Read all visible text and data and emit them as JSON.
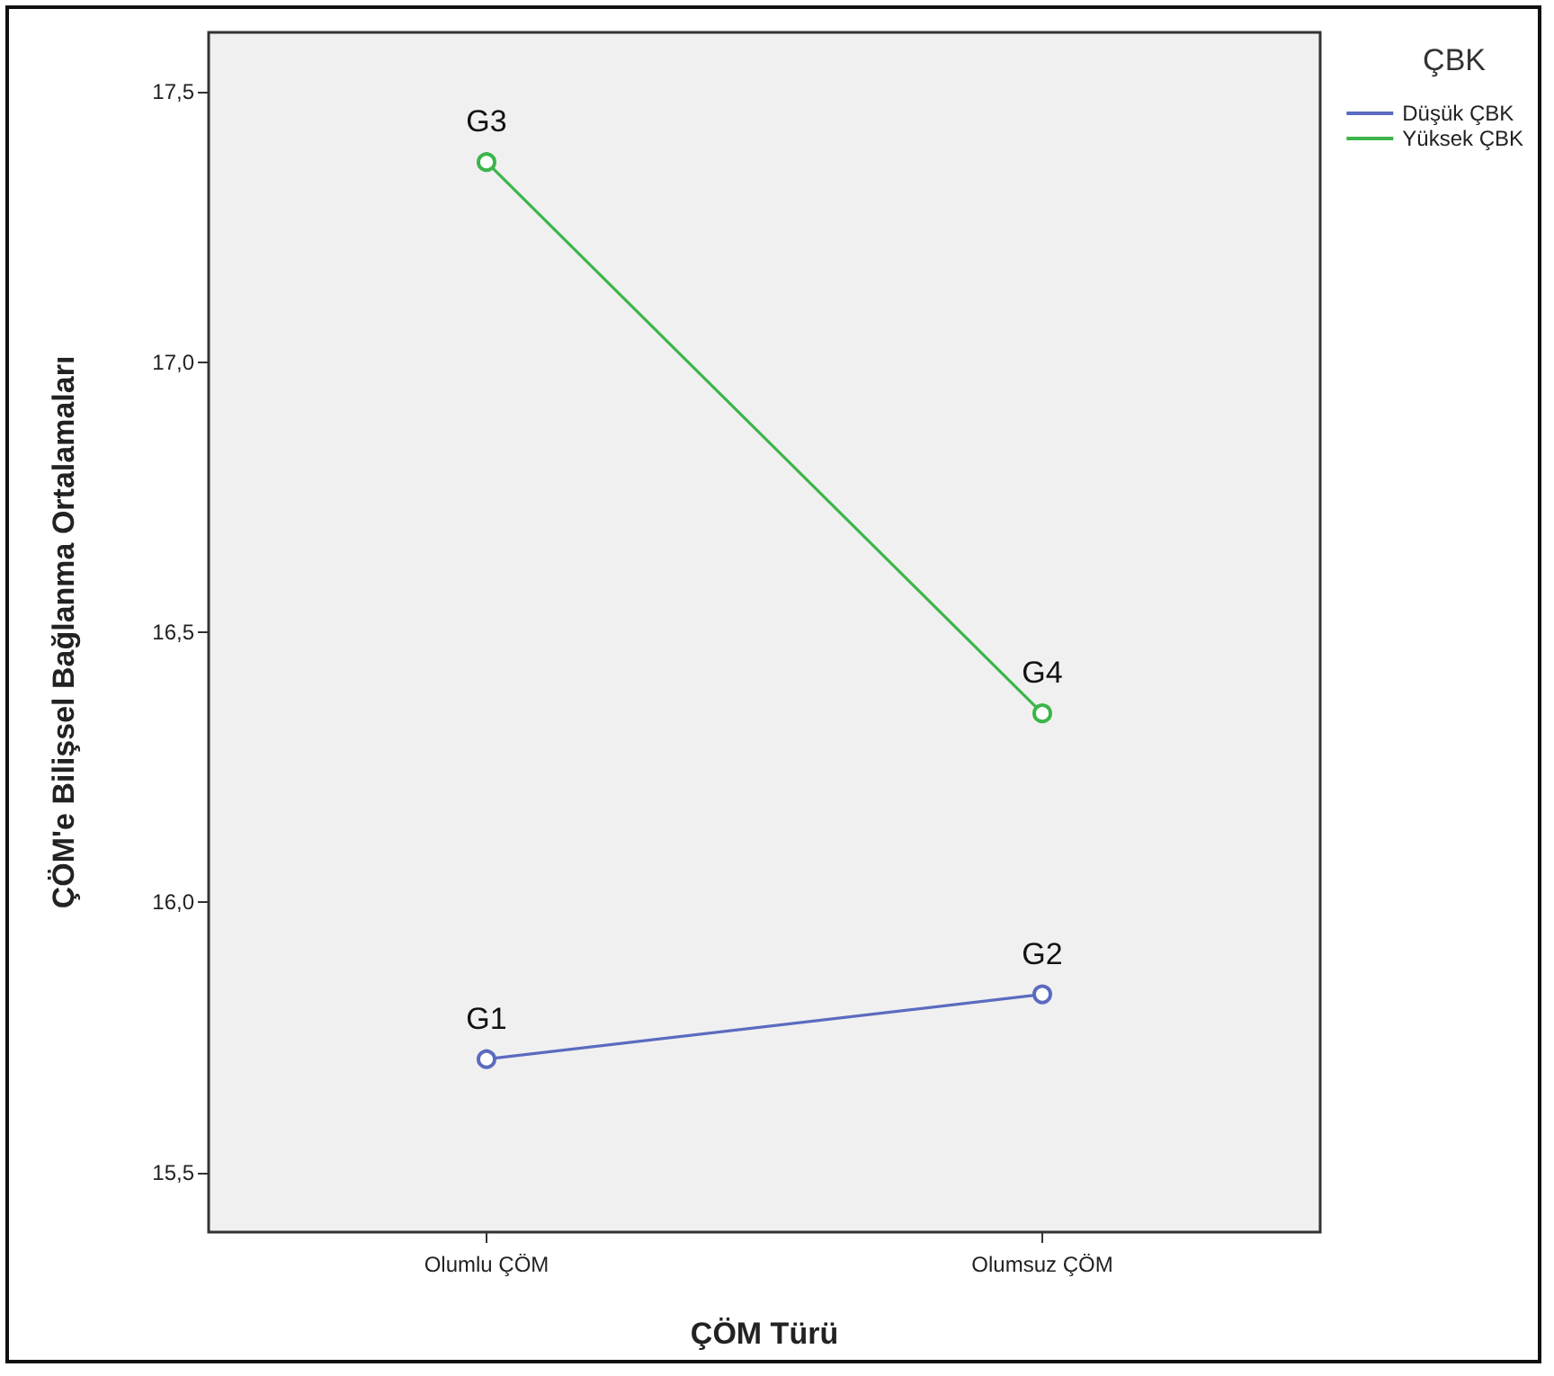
{
  "chart_data": {
    "type": "line",
    "xlabel": "ÇÖM Türü",
    "ylabel": "ÇÖM'e Bilişsel Bağlanma Ortalamaları",
    "legend_title": "ÇBK",
    "legend": "right",
    "marker": "circle",
    "grid": false,
    "categories": [
      "Olumlu ÇÖM",
      "Olumsuz ÇÖM"
    ],
    "series": [
      {
        "name": "Düşük ÇBK",
        "color": "#5b6bbf",
        "values": [
          15.71,
          15.83
        ]
      },
      {
        "name": "Yüksek ÇBK",
        "color": "#3cb54a",
        "values": [
          17.37,
          16.35
        ]
      }
    ],
    "ylim": [
      15.39,
      17.61
    ],
    "yticks": [
      {
        "value": 15.5,
        "label": "15,5"
      },
      {
        "value": 16.0,
        "label": "16,0"
      },
      {
        "value": 16.5,
        "label": "16,5"
      },
      {
        "value": 17.0,
        "label": "17,0"
      },
      {
        "value": 17.5,
        "label": "17,5"
      }
    ],
    "annotations": [
      {
        "text": "G1",
        "x": "Olumlu ÇÖM",
        "y": 15.71
      },
      {
        "text": "G2",
        "x": "Olumsuz ÇÖM",
        "y": 15.83
      },
      {
        "text": "G3",
        "x": "Olumlu ÇÖM",
        "y": 17.37
      },
      {
        "text": "G4",
        "x": "Olumsuz ÇÖM",
        "y": 16.35
      }
    ]
  }
}
